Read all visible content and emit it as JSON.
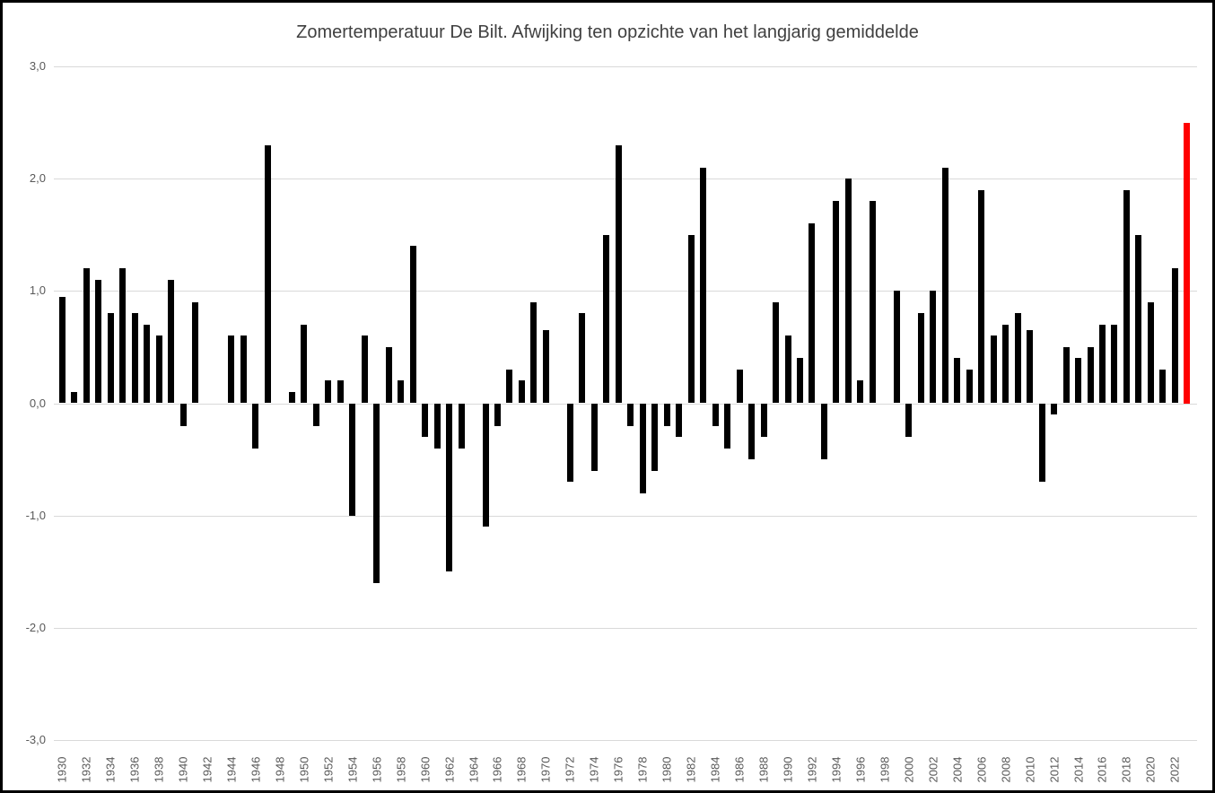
{
  "title": "Zomertemperatuur De Bilt. Afwijking ten opzichte van het langjarig gemiddelde",
  "chart_data": {
    "type": "bar",
    "title": "Zomertemperatuur De Bilt. Afwijking ten opzichte van het langjarig gemiddelde",
    "xlabel": "",
    "ylabel": "",
    "ylim": [
      -3.0,
      3.0
    ],
    "ytick_values": [
      3.0,
      2.0,
      1.0,
      0.0,
      -1.0,
      -2.0,
      -3.0
    ],
    "ytick_labels": [
      "3,0",
      "2,0",
      "1,0",
      "0,0",
      "-1,0",
      "-2,0",
      "-3,0"
    ],
    "xtick_step": 2,
    "grid": "horizontal",
    "legend": "none",
    "bar_color": "#000000",
    "highlight_year": 2023,
    "highlight_color": "#ff0000",
    "gridline_color": "#d9d9d9",
    "axis_label_color": "#595959",
    "title_color": "#404040",
    "x": [
      1930,
      1931,
      1932,
      1933,
      1934,
      1935,
      1936,
      1937,
      1938,
      1939,
      1940,
      1941,
      1942,
      1943,
      1944,
      1945,
      1946,
      1947,
      1948,
      1949,
      1950,
      1951,
      1952,
      1953,
      1954,
      1955,
      1956,
      1957,
      1958,
      1959,
      1960,
      1961,
      1962,
      1963,
      1964,
      1965,
      1966,
      1967,
      1968,
      1969,
      1970,
      1971,
      1972,
      1973,
      1974,
      1975,
      1976,
      1977,
      1978,
      1979,
      1980,
      1981,
      1982,
      1983,
      1984,
      1985,
      1986,
      1987,
      1988,
      1989,
      1990,
      1991,
      1992,
      1993,
      1994,
      1995,
      1996,
      1997,
      1998,
      1999,
      2000,
      2001,
      2002,
      2003,
      2004,
      2005,
      2006,
      2007,
      2008,
      2009,
      2010,
      2011,
      2012,
      2013,
      2014,
      2015,
      2016,
      2017,
      2018,
      2019,
      2020,
      2021,
      2022,
      2023
    ],
    "values": [
      0.95,
      0.1,
      1.2,
      1.1,
      0.8,
      1.2,
      0.8,
      0.7,
      0.6,
      1.1,
      -0.2,
      0.9,
      0.0,
      0.0,
      0.6,
      0.6,
      -0.4,
      2.3,
      0.0,
      0.1,
      0.7,
      -0.2,
      0.2,
      0.2,
      -1.0,
      0.6,
      -1.6,
      0.5,
      0.2,
      1.4,
      -0.3,
      -0.4,
      -1.5,
      -0.4,
      0.0,
      -1.1,
      -0.2,
      0.3,
      0.2,
      0.9,
      0.65,
      0.0,
      -0.7,
      0.8,
      -0.6,
      1.5,
      2.3,
      -0.2,
      -0.8,
      -0.6,
      -0.2,
      -0.3,
      1.5,
      2.1,
      -0.2,
      -0.4,
      0.3,
      -0.5,
      -0.3,
      0.9,
      0.6,
      0.4,
      1.6,
      -0.5,
      1.8,
      2.0,
      0.2,
      1.8,
      0.0,
      1.0,
      -0.3,
      0.8,
      1.0,
      2.1,
      0.4,
      0.3,
      1.9,
      0.6,
      0.7,
      0.8,
      0.65,
      -0.7,
      -0.1,
      0.5,
      0.4,
      0.5,
      0.7,
      0.7,
      1.9,
      1.5,
      0.9,
      0.3,
      1.2,
      2.5
    ]
  }
}
